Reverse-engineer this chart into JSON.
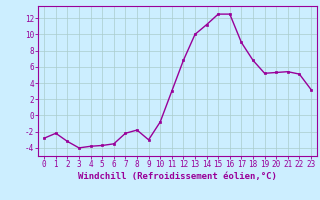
{
  "x": [
    0,
    1,
    2,
    3,
    4,
    5,
    6,
    7,
    8,
    9,
    10,
    11,
    12,
    13,
    14,
    15,
    16,
    17,
    18,
    19,
    20,
    21,
    22,
    23
  ],
  "y": [
    -2.8,
    -2.2,
    -3.2,
    -4.0,
    -3.8,
    -3.7,
    -3.5,
    -2.2,
    -1.8,
    -3.0,
    -0.8,
    3.0,
    6.8,
    10.0,
    11.2,
    12.5,
    12.5,
    9.0,
    6.8,
    5.2,
    5.3,
    5.4,
    5.1,
    3.2
  ],
  "line_color": "#990099",
  "marker": "s",
  "marker_size": 2.0,
  "line_width": 1.0,
  "xlabel": "Windchill (Refroidissement éolien,°C)",
  "xlabel_fontsize": 6.5,
  "yticks": [
    -4,
    -2,
    0,
    2,
    4,
    6,
    8,
    10,
    12
  ],
  "xlim": [
    -0.5,
    23.5
  ],
  "ylim": [
    -5.0,
    13.5
  ],
  "background_color": "#cceeff",
  "grid_color": "#aacccc",
  "tick_fontsize": 5.5,
  "spine_color": "#990099"
}
